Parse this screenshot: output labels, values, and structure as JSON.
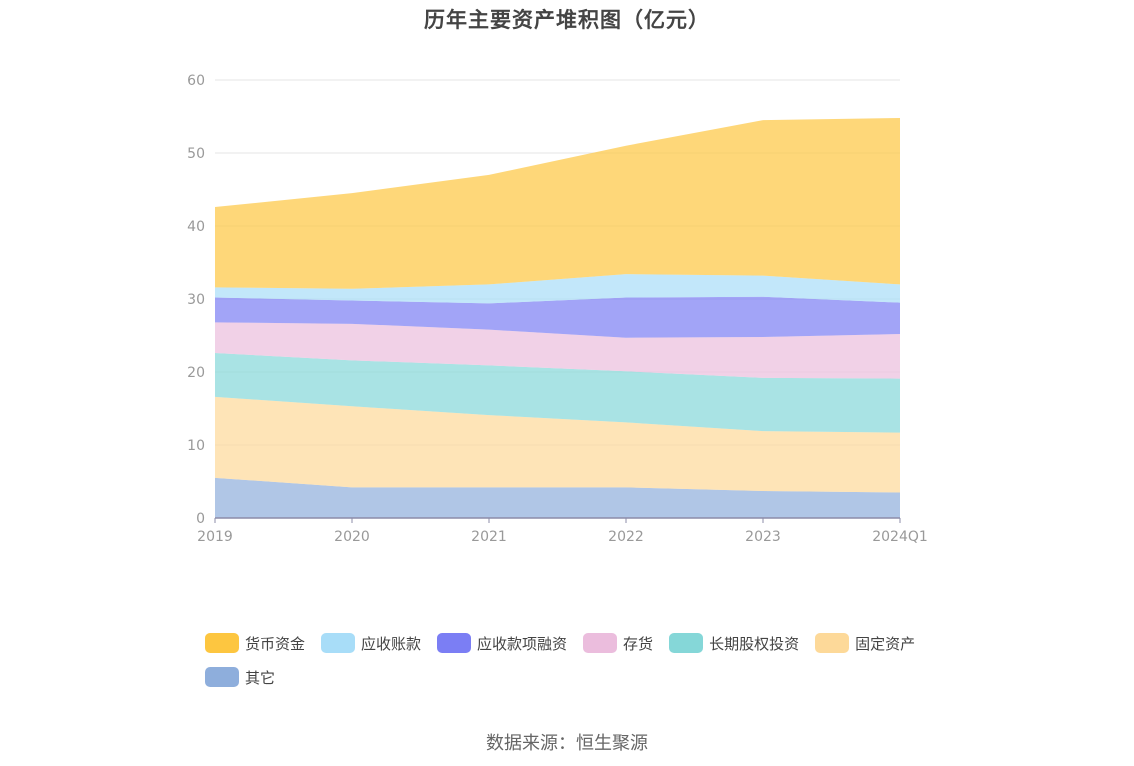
{
  "chart_data": {
    "type": "area",
    "stacked": true,
    "title": "历年主要资产堆积图（亿元）",
    "categories": [
      "2019",
      "2020",
      "2021",
      "2022",
      "2023",
      "2024Q1"
    ],
    "ylim": [
      0,
      60
    ],
    "yticks": [
      0,
      10,
      20,
      30,
      40,
      50,
      60
    ],
    "grid": true,
    "legend_position": "bottom",
    "series": [
      {
        "name": "其它",
        "color": "#8eaedc",
        "values": [
          5.5,
          4.2,
          4.2,
          4.2,
          3.7,
          3.5
        ]
      },
      {
        "name": "固定资产",
        "color": "#fdd999",
        "values": [
          11.1,
          11.1,
          9.9,
          8.9,
          8.2,
          8.2
        ]
      },
      {
        "name": "长期股权投资",
        "color": "#85d7d8",
        "values": [
          6.0,
          6.3,
          6.8,
          7.0,
          7.3,
          7.4
        ]
      },
      {
        "name": "存货",
        "color": "#ebbddd",
        "values": [
          4.2,
          5.0,
          4.9,
          4.6,
          5.6,
          6.1
        ]
      },
      {
        "name": "应收款项融资",
        "color": "#7b7ef4",
        "values": [
          3.4,
          3.2,
          3.6,
          5.5,
          5.5,
          4.3
        ]
      },
      {
        "name": "应收账款",
        "color": "#a8ddf8",
        "values": [
          1.4,
          1.6,
          2.6,
          3.2,
          2.9,
          2.5
        ]
      },
      {
        "name": "货币资金",
        "color": "#fdc640",
        "values": [
          11.0,
          13.1,
          15.0,
          17.6,
          21.3,
          22.8
        ]
      }
    ],
    "legend_order": [
      "货币资金",
      "应收账款",
      "应收款项融资",
      "存货",
      "长期股权投资",
      "固定资产",
      "其它"
    ]
  },
  "source_text": "数据来源：恒生聚源"
}
